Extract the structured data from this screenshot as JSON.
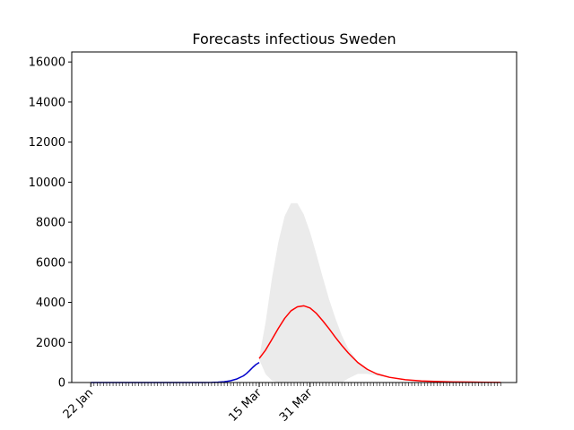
{
  "chart_data": {
    "type": "line",
    "title": "Forecasts infectious Sweden",
    "xlabel": "",
    "ylabel": "",
    "x_axis_type": "date",
    "x_start": "2020-01-22",
    "x_end": "2020-05-30",
    "xlim": [
      "2020-01-16",
      "2020-06-04"
    ],
    "ylim": [
      0,
      16500
    ],
    "y_ticks": [
      0,
      2000,
      4000,
      6000,
      8000,
      10000,
      12000,
      14000,
      16000
    ],
    "x_tick_labels": [
      {
        "date": "2020-01-22",
        "label": "22 Jan"
      },
      {
        "date": "2020-03-15",
        "label": "15 Mar"
      },
      {
        "date": "2020-03-31",
        "label": "31 Mar"
      }
    ],
    "grid": false,
    "legend": "none",
    "series": [
      {
        "role": "observed",
        "color": "#0000cc",
        "x": [
          "2020-01-22",
          "2020-01-27",
          "2020-02-01",
          "2020-02-06",
          "2020-02-11",
          "2020-02-16",
          "2020-02-21",
          "2020-02-26",
          "2020-02-29",
          "2020-03-02",
          "2020-03-04",
          "2020-03-06",
          "2020-03-08",
          "2020-03-10",
          "2020-03-11",
          "2020-03-12",
          "2020-03-13",
          "2020-03-14",
          "2020-03-15"
        ],
        "values": [
          0,
          0,
          0,
          0,
          0,
          0,
          0,
          0,
          5,
          15,
          40,
          90,
          180,
          330,
          450,
          600,
          760,
          900,
          1000
        ]
      },
      {
        "role": "forecast",
        "color": "#ff0000",
        "x": [
          "2020-03-15",
          "2020-03-17",
          "2020-03-19",
          "2020-03-21",
          "2020-03-23",
          "2020-03-25",
          "2020-03-27",
          "2020-03-29",
          "2020-03-31",
          "2020-04-02",
          "2020-04-04",
          "2020-04-06",
          "2020-04-08",
          "2020-04-10",
          "2020-04-12",
          "2020-04-15",
          "2020-04-18",
          "2020-04-21",
          "2020-04-25",
          "2020-04-30",
          "2020-05-05",
          "2020-05-10",
          "2020-05-15",
          "2020-05-20",
          "2020-05-25",
          "2020-05-30"
        ],
        "values": [
          1200,
          1620,
          2150,
          2700,
          3200,
          3580,
          3780,
          3830,
          3720,
          3450,
          3080,
          2680,
          2250,
          1850,
          1480,
          1000,
          660,
          430,
          260,
          140,
          80,
          50,
          30,
          20,
          12,
          8
        ]
      }
    ],
    "band": {
      "color": "#ebebeb",
      "x": [
        "2020-03-15",
        "2020-03-17",
        "2020-03-19",
        "2020-03-21",
        "2020-03-23",
        "2020-03-25",
        "2020-03-27",
        "2020-03-29",
        "2020-03-31",
        "2020-04-02",
        "2020-04-04",
        "2020-04-06",
        "2020-04-08",
        "2020-04-10",
        "2020-04-12",
        "2020-04-15",
        "2020-04-18",
        "2020-04-21",
        "2020-04-25",
        "2020-04-30",
        "2020-05-05",
        "2020-05-10",
        "2020-05-15",
        "2020-05-20",
        "2020-05-25",
        "2020-05-30"
      ],
      "upper": [
        1250,
        3000,
        5200,
        7000,
        8300,
        8950,
        8950,
        8400,
        7500,
        6400,
        5250,
        4150,
        3200,
        2350,
        1700,
        1050,
        680,
        440,
        270,
        150,
        90,
        55,
        35,
        22,
        14,
        9
      ],
      "lower": [
        1150,
        420,
        100,
        0,
        0,
        0,
        0,
        0,
        0,
        0,
        0,
        0,
        0,
        0,
        200,
        430,
        430,
        350,
        230,
        130,
        75,
        45,
        28,
        18,
        11,
        7
      ]
    }
  }
}
